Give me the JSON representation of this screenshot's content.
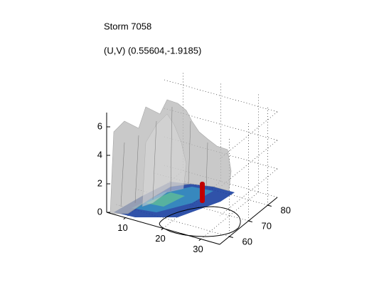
{
  "chart_data": {
    "type": "surface3d",
    "title": "Storm 7058",
    "subtitle": "(U,V) (0.55604,-1.9185)",
    "xlim": [
      5,
      35
    ],
    "ylim": [
      55,
      85
    ],
    "zlim": [
      0,
      7
    ],
    "xticks": [
      10,
      20,
      30
    ],
    "yticks": [
      60,
      70,
      80
    ],
    "zticks": [
      0,
      2,
      4,
      6
    ],
    "grid": true
  }
}
